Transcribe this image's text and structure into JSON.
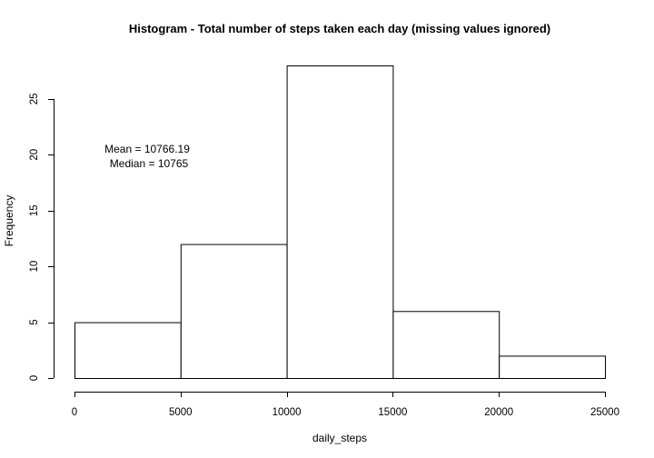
{
  "chart_data": {
    "type": "bar",
    "title": "Histogram - Total number of steps taken each day (missing values ignored)",
    "xlabel": "daily_steps",
    "ylabel": "Frequency",
    "bins": [
      {
        "start": 0,
        "end": 5000,
        "count": 5
      },
      {
        "start": 5000,
        "end": 10000,
        "count": 12
      },
      {
        "start": 10000,
        "end": 15000,
        "count": 28
      },
      {
        "start": 15000,
        "end": 20000,
        "count": 6
      },
      {
        "start": 20000,
        "end": 25000,
        "count": 2
      }
    ],
    "xlim": [
      0,
      25000
    ],
    "ylim": [
      0,
      28
    ],
    "x_ticks": [
      0,
      5000,
      10000,
      15000,
      20000,
      25000
    ],
    "y_ticks": [
      0,
      5,
      10,
      15,
      20,
      25
    ],
    "grid": false,
    "annotations": [
      "Mean =  10766.19",
      "Median = 10765"
    ]
  }
}
